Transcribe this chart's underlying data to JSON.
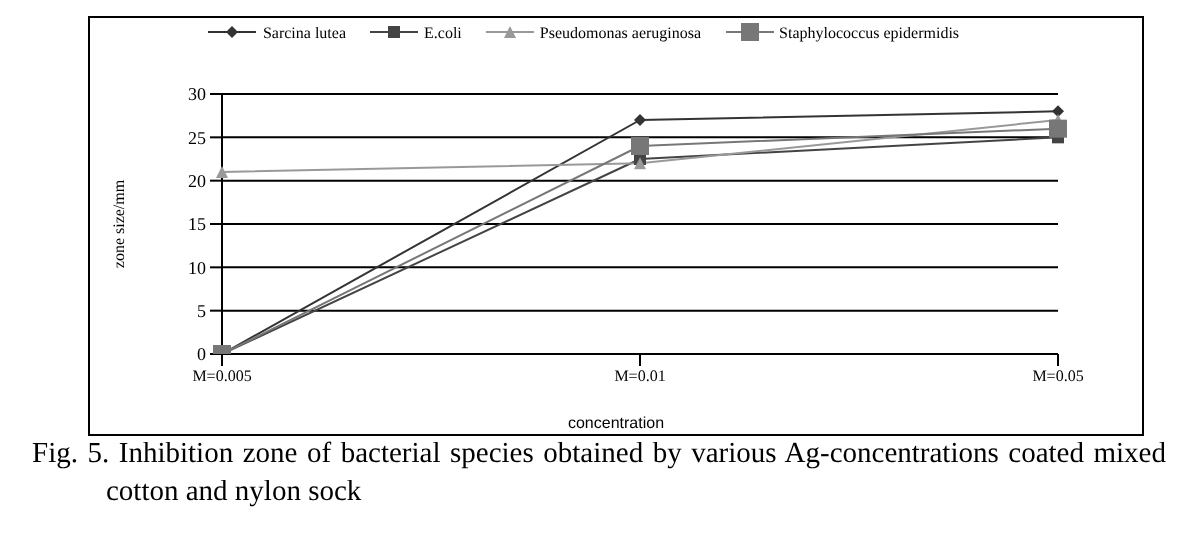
{
  "chart_data": {
    "type": "line",
    "xlabel": "concentration",
    "ylabel": "zone size/mm",
    "categories": [
      "M=0.005",
      "M=0.01",
      "M=0.05"
    ],
    "series": [
      {
        "name": "Sarcina lutea",
        "color": "#333333",
        "marker": "diamond",
        "values": [
          0,
          27,
          28
        ]
      },
      {
        "name": "E.coli",
        "color": "#444444",
        "marker": "square",
        "values": [
          0,
          22.5,
          25
        ]
      },
      {
        "name": "Pseudomonas aeruginosa",
        "color": "#999999",
        "marker": "triangle",
        "values": [
          21,
          22,
          27
        ]
      },
      {
        "name": "Staphylococcus epidermidis",
        "color": "#777777",
        "marker": "square",
        "values": [
          0,
          24,
          26
        ]
      }
    ],
    "ylim": [
      0,
      30
    ],
    "yticks": [
      0,
      5,
      10,
      15,
      20,
      25,
      30
    ],
    "grid": "y",
    "legend": "top",
    "annotations": [
      "Fig. 5. Inhibition zone of bacterial species obtained by various Ag-concentrations coated mixed cotton and nylon sock"
    ]
  }
}
